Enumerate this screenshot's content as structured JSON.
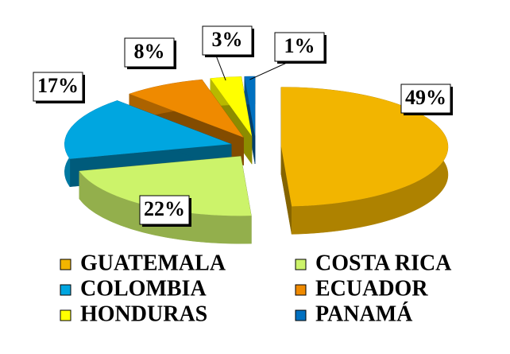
{
  "chart_data": {
    "type": "pie",
    "categories": [
      "GUATEMALA",
      "COSTA RICA",
      "COLOMBIA",
      "ECUADOR",
      "HONDURAS",
      "PANAMÁ"
    ],
    "values": [
      49,
      22,
      17,
      8,
      3,
      1
    ],
    "value_labels": [
      "49%",
      "22%",
      "17%",
      "8%",
      "3%",
      "1%"
    ],
    "colors": [
      "#f2b500",
      "#ccf36a",
      "#00a6e0",
      "#ef8a00",
      "#ffff00",
      "#0070c0"
    ]
  }
}
